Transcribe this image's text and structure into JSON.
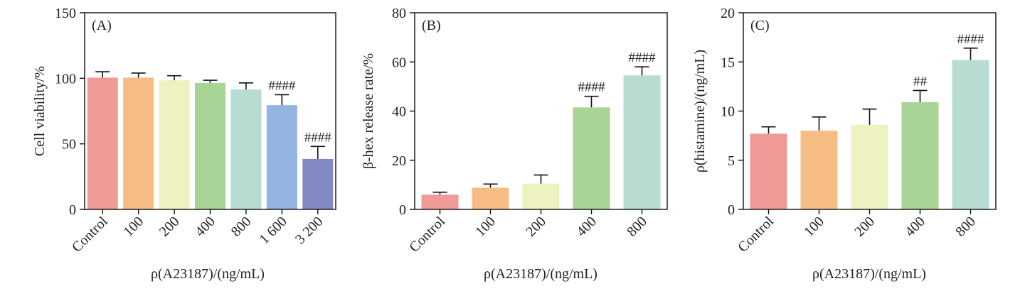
{
  "chart_data": [
    {
      "type": "bar",
      "panel_label": "(A)",
      "categories": [
        "Control",
        "100",
        "200",
        "400",
        "800",
        "1 600",
        "3 200"
      ],
      "values": [
        100.5,
        100.5,
        98.5,
        96.5,
        91.5,
        79.5,
        38.5
      ],
      "errors": [
        4.5,
        3.5,
        3.5,
        2.0,
        5.0,
        8.0,
        9.5
      ],
      "significance": [
        "",
        "",
        "",
        "",
        "",
        "####",
        "####"
      ],
      "colors": [
        "#f09a98",
        "#f5bd84",
        "#eef2c0",
        "#a8d596",
        "#b7ddd2",
        "#93b3e0",
        "#8389c2"
      ],
      "ylabel": "Cell viability/%",
      "xlabel": "ρ(A23187)/(ng/mL)",
      "ylim": [
        0,
        150
      ],
      "yticks": [
        0,
        50,
        100,
        150
      ]
    },
    {
      "type": "bar",
      "panel_label": "(B)",
      "categories": [
        "Control",
        "100",
        "200",
        "400",
        "800"
      ],
      "values": [
        6.0,
        8.8,
        10.5,
        41.5,
        54.5
      ],
      "errors": [
        1.0,
        1.5,
        3.5,
        4.5,
        3.5
      ],
      "significance": [
        "",
        "",
        "",
        "####",
        "####"
      ],
      "colors": [
        "#f09a98",
        "#f5bd84",
        "#eef2c0",
        "#a8d596",
        "#b7ddd2"
      ],
      "ylabel": "β-hex release rate/%",
      "xlabel": "ρ(A23187)/(ng/mL)",
      "ylim": [
        0,
        80
      ],
      "yticks": [
        0,
        20,
        40,
        60,
        80
      ]
    },
    {
      "type": "bar",
      "panel_label": "(C)",
      "categories": [
        "Control",
        "100",
        "200",
        "400",
        "800"
      ],
      "values": [
        7.7,
        8.0,
        8.6,
        10.9,
        15.2
      ],
      "errors": [
        0.7,
        1.4,
        1.6,
        1.2,
        1.2
      ],
      "significance": [
        "",
        "",
        "",
        "##",
        "####"
      ],
      "colors": [
        "#f09a98",
        "#f5bd84",
        "#eef2c0",
        "#a8d596",
        "#b7ddd2"
      ],
      "ylabel": "ρ(histamine)/(ng/mL)",
      "xlabel": "ρ(A23187)/(ng/mL)",
      "ylim": [
        0,
        20
      ],
      "yticks": [
        0,
        5,
        10,
        15,
        20
      ]
    }
  ]
}
